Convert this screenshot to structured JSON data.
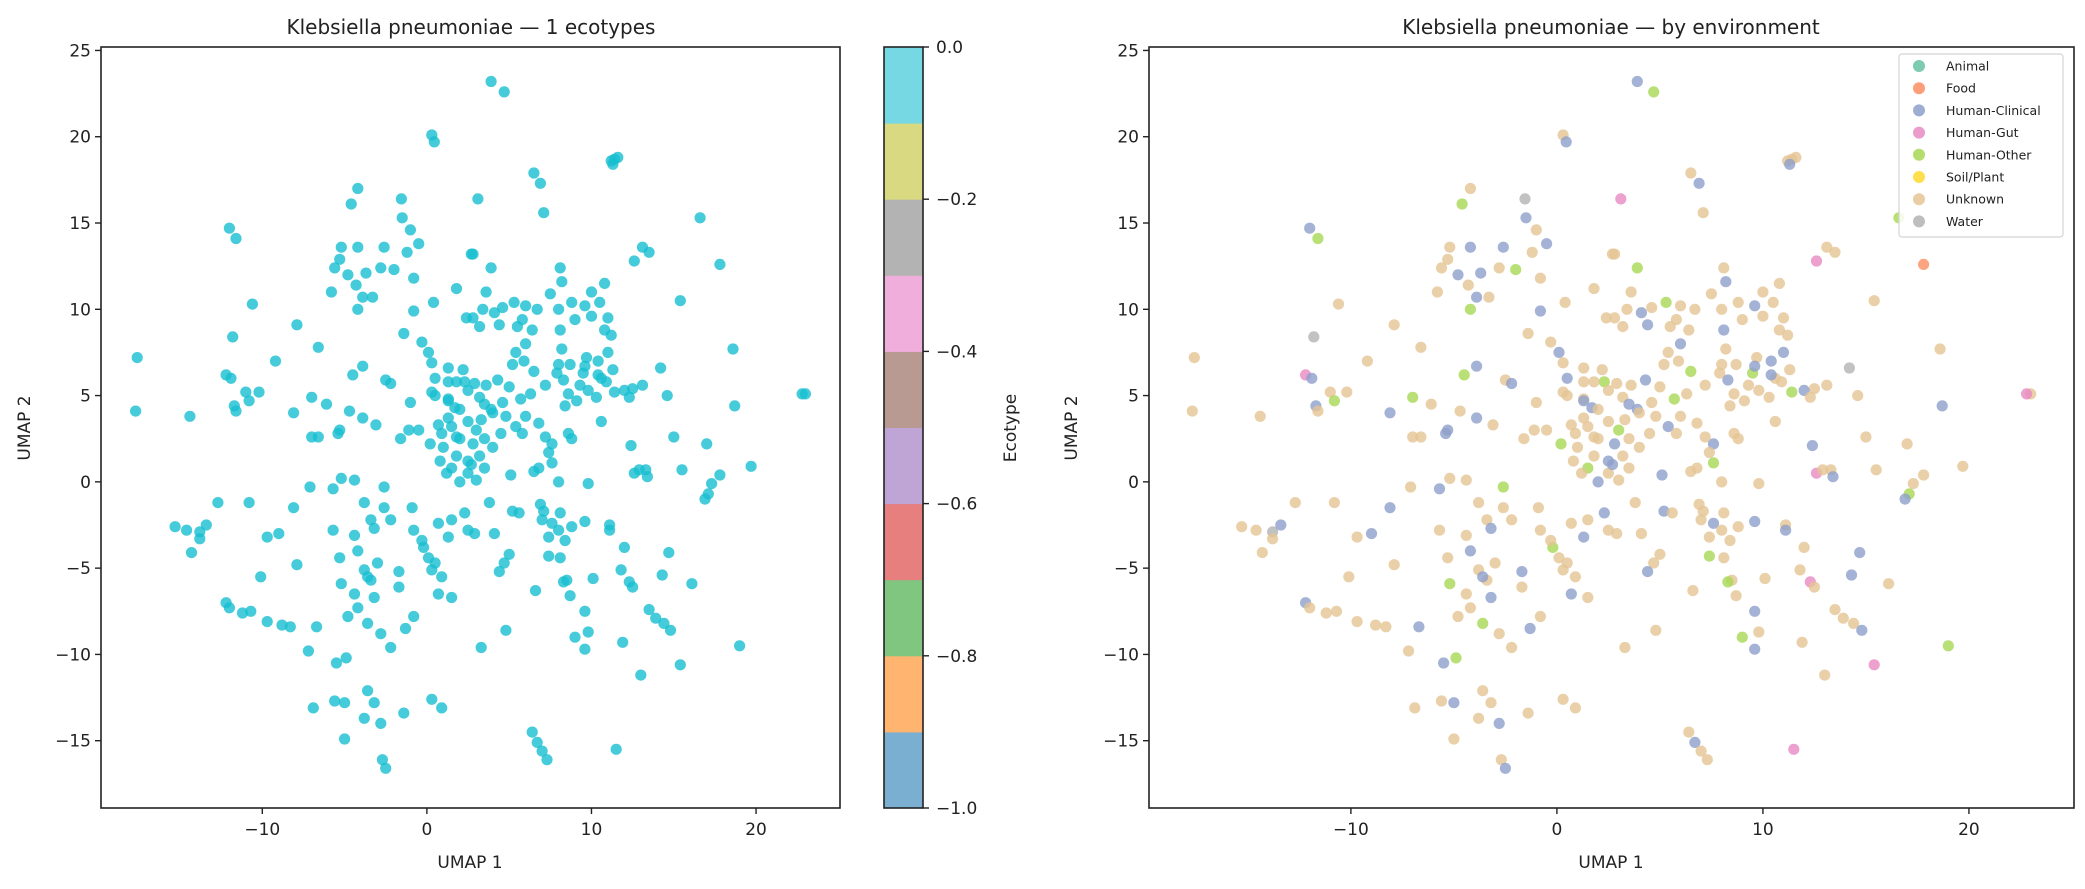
{
  "chart_data": [
    {
      "type": "scatter",
      "title": "Klebsiella pneumoniae — 1 ecotypes",
      "xlabel": "UMAP 1",
      "ylabel": "UMAP 2",
      "xlim": [
        -19.8,
        25.1
      ],
      "ylim": [
        -18.9,
        25.2
      ],
      "xticks": [
        -10,
        0,
        10,
        20
      ],
      "yticks": [
        -15,
        -10,
        -5,
        0,
        5,
        10,
        15,
        20,
        25
      ],
      "xtick_labels": [
        "−10",
        "0",
        "10",
        "20"
      ],
      "ytick_labels": [
        "−15",
        "−10",
        "−5",
        "0",
        "5",
        "10",
        "15",
        "20",
        "25"
      ],
      "point_color": "#17becf",
      "grid": false,
      "colorbar": {
        "label": "Ecotype",
        "range": [
          -1.0,
          0.0
        ],
        "ticks": [
          0.0,
          -0.2,
          -0.4,
          -0.6,
          -0.8,
          -1.0
        ],
        "tick_labels": [
          "0.0",
          "−0.2",
          "−0.4",
          "−0.6",
          "−0.8",
          "−1.0"
        ],
        "colors_bottom_to_top": [
          "#7aafd2",
          "#ffb56f",
          "#80c680",
          "#e77f7f",
          "#bea5d6",
          "#b99a92",
          "#efaedb",
          "#b3b3b3",
          "#d8d980",
          "#75d8e2"
        ]
      }
    },
    {
      "type": "scatter",
      "title": "Klebsiella pneumoniae — by environment",
      "xlabel": "UMAP 1",
      "ylabel": "UMAP 2",
      "xlim": [
        -19.8,
        25.1
      ],
      "ylim": [
        -18.9,
        25.2
      ],
      "xticks": [
        -10,
        0,
        10,
        20
      ],
      "yticks": [
        -15,
        -10,
        -5,
        0,
        5,
        10,
        15,
        20,
        25
      ],
      "xtick_labels": [
        "−10",
        "0",
        "10",
        "20"
      ],
      "ytick_labels": [
        "−15",
        "−10",
        "−5",
        "0",
        "5",
        "10",
        "15",
        "20",
        "25"
      ],
      "grid": false,
      "legend_position": "top-right",
      "categories": [
        "Animal",
        "Food",
        "Human-Clinical",
        "Human-Gut",
        "Human-Other",
        "Soil/Plant",
        "Unknown",
        "Water"
      ],
      "category_colors": [
        "#66c2a5",
        "#fc8d62",
        "#8da0cb",
        "#e78ac3",
        "#a6d854",
        "#ffd92f",
        "#e5c494",
        "#b3b3b3"
      ]
    }
  ],
  "points": [
    [
      0.3,
      20.1,
      6
    ],
    [
      0.45,
      19.7,
      2
    ],
    [
      -4.2,
      17.0,
      6
    ],
    [
      -4.6,
      16.1,
      4
    ],
    [
      -1.55,
      16.4,
      7
    ],
    [
      -1.5,
      15.3,
      2
    ],
    [
      -1.0,
      14.6,
      6
    ],
    [
      -0.5,
      13.8,
      2
    ],
    [
      -1.2,
      13.3,
      6
    ],
    [
      -2.6,
      13.6,
      2
    ],
    [
      -12.0,
      14.7,
      2
    ],
    [
      -11.6,
      14.1,
      4
    ],
    [
      -5.2,
      13.6,
      6
    ],
    [
      -4.2,
      13.6,
      2
    ],
    [
      -5.3,
      12.9,
      6
    ],
    [
      -5.6,
      12.4,
      6
    ],
    [
      -4.8,
      12.0,
      2
    ],
    [
      -4.3,
      11.4,
      6
    ],
    [
      -3.7,
      12.1,
      2
    ],
    [
      -2.8,
      12.4,
      6
    ],
    [
      -2.0,
      12.3,
      4
    ],
    [
      -0.8,
      11.8,
      6
    ],
    [
      1.8,
      11.2,
      6
    ],
    [
      2.7,
      13.2,
      6
    ],
    [
      -5.8,
      11.0,
      6
    ],
    [
      -3.9,
      10.7,
      2
    ],
    [
      -3.3,
      10.7,
      6
    ],
    [
      -4.2,
      10.0,
      4
    ],
    [
      -0.8,
      9.9,
      2
    ],
    [
      0.4,
      10.4,
      6
    ],
    [
      2.4,
      9.5,
      6
    ],
    [
      -10.6,
      10.3,
      6
    ],
    [
      -7.9,
      9.1,
      6
    ],
    [
      -11.8,
      8.4,
      7
    ],
    [
      -6.6,
      7.8,
      6
    ],
    [
      -17.6,
      7.2,
      6
    ],
    [
      -9.2,
      7.0,
      6
    ],
    [
      -12.2,
      6.2,
      3
    ],
    [
      -11.9,
      6.0,
      2
    ],
    [
      -3.9,
      6.7,
      2
    ],
    [
      -4.5,
      6.2,
      4
    ],
    [
      -2.5,
      5.9,
      6
    ],
    [
      -2.2,
      5.7,
      2
    ],
    [
      -1.4,
      8.6,
      6
    ],
    [
      -0.3,
      8.1,
      6
    ],
    [
      0.1,
      7.5,
      2
    ],
    [
      0.3,
      6.9,
      6
    ],
    [
      1.3,
      6.6,
      6
    ],
    [
      2.2,
      6.5,
      6
    ],
    [
      0.5,
      6.0,
      2
    ],
    [
      1.3,
      5.8,
      6
    ],
    [
      2.3,
      5.8,
      4
    ],
    [
      0.3,
      5.2,
      6
    ],
    [
      1.3,
      4.8,
      6
    ],
    [
      1.7,
      4.3,
      2
    ],
    [
      1.3,
      3.7,
      6
    ],
    [
      0.7,
      3.3,
      6
    ],
    [
      -17.7,
      4.1,
      6
    ],
    [
      -14.4,
      3.8,
      6
    ],
    [
      -11.0,
      5.2,
      6
    ],
    [
      -10.2,
      5.2,
      6
    ],
    [
      -10.8,
      4.7,
      4
    ],
    [
      -11.7,
      4.4,
      2
    ],
    [
      -11.6,
      4.1,
      6
    ],
    [
      -7.0,
      4.9,
      4
    ],
    [
      -6.1,
      4.5,
      6
    ],
    [
      -8.1,
      4.0,
      2
    ],
    [
      -4.7,
      4.1,
      6
    ],
    [
      -3.9,
      3.7,
      2
    ],
    [
      -3.1,
      3.3,
      6
    ],
    [
      -1.0,
      4.6,
      6
    ],
    [
      -5.3,
      3.0,
      2
    ],
    [
      -1.1,
      3.0,
      6
    ],
    [
      -0.5,
      3.0,
      6
    ],
    [
      3.9,
      23.2,
      2
    ],
    [
      4.7,
      22.6,
      4
    ],
    [
      11.4,
      18.7,
      6
    ],
    [
      11.2,
      18.6,
      6
    ],
    [
      11.6,
      18.8,
      6
    ],
    [
      11.3,
      18.4,
      2
    ],
    [
      6.5,
      17.9,
      6
    ],
    [
      6.9,
      17.3,
      2
    ],
    [
      3.1,
      16.4,
      3
    ],
    [
      7.1,
      15.6,
      6
    ],
    [
      16.6,
      15.3,
      4
    ],
    [
      13.1,
      13.6,
      6
    ],
    [
      13.5,
      13.3,
      6
    ],
    [
      12.6,
      12.8,
      3
    ],
    [
      17.8,
      12.6,
      1
    ],
    [
      2.8,
      13.2,
      6
    ],
    [
      3.9,
      12.4,
      4
    ],
    [
      8.1,
      12.4,
      6
    ],
    [
      8.2,
      11.6,
      2
    ],
    [
      7.5,
      10.9,
      6
    ],
    [
      10.8,
      11.5,
      6
    ],
    [
      10.0,
      11.0,
      6
    ],
    [
      3.6,
      11.0,
      6
    ],
    [
      15.4,
      10.5,
      6
    ],
    [
      18.6,
      7.7,
      6
    ],
    [
      23.0,
      5.1,
      6
    ],
    [
      22.8,
      5.1,
      3
    ],
    [
      18.7,
      4.4,
      2
    ],
    [
      14.6,
      5.0,
      6
    ],
    [
      14.2,
      6.6,
      7
    ],
    [
      12.5,
      5.4,
      6
    ],
    [
      13.1,
      5.6,
      6
    ],
    [
      12.0,
      5.3,
      2
    ],
    [
      12.3,
      4.9,
      6
    ],
    [
      10.6,
      3.5,
      6
    ],
    [
      8.4,
      4.4,
      6
    ],
    [
      8.0,
      10.0,
      6
    ],
    [
      8.8,
      10.4,
      6
    ],
    [
      9.6,
      10.2,
      2
    ],
    [
      10.5,
      10.4,
      6
    ],
    [
      11.0,
      9.5,
      6
    ],
    [
      11.2,
      8.5,
      6
    ],
    [
      11.0,
      7.5,
      2
    ],
    [
      11.3,
      6.5,
      6
    ],
    [
      10.6,
      6.0,
      6
    ],
    [
      9.5,
      6.3,
      4
    ],
    [
      8.7,
      6.8,
      6
    ],
    [
      8.2,
      7.7,
      6
    ],
    [
      8.1,
      8.8,
      2
    ],
    [
      9.0,
      9.4,
      6
    ],
    [
      10.0,
      9.6,
      6
    ],
    [
      10.8,
      8.8,
      6
    ],
    [
      9.7,
      7.2,
      6
    ],
    [
      10.4,
      7.0,
      2
    ],
    [
      2.8,
      9.5,
      6
    ],
    [
      3.4,
      10.0,
      6
    ],
    [
      4.1,
      9.8,
      2
    ],
    [
      4.6,
      10.1,
      6
    ],
    [
      5.3,
      10.4,
      4
    ],
    [
      6.0,
      10.2,
      6
    ],
    [
      6.7,
      10.0,
      6
    ],
    [
      3.2,
      9.0,
      6
    ],
    [
      4.4,
      9.1,
      2
    ],
    [
      5.8,
      9.4,
      6
    ],
    [
      5.5,
      9.0,
      6
    ],
    [
      6.4,
      8.8,
      6
    ],
    [
      6.0,
      8.0,
      2
    ],
    [
      5.4,
      7.5,
      6
    ],
    [
      5.9,
      7.0,
      6
    ],
    [
      6.5,
      6.4,
      4
    ],
    [
      5.2,
      6.8,
      6
    ],
    [
      7.2,
      5.6,
      6
    ],
    [
      7.9,
      6.3,
      6
    ],
    [
      8.3,
      5.9,
      2
    ],
    [
      8.6,
      5.1,
      6
    ],
    [
      9.3,
      5.6,
      6
    ],
    [
      9.8,
      5.3,
      6
    ],
    [
      10.4,
      6.2,
      2
    ],
    [
      10.9,
      5.8,
      6
    ],
    [
      11.4,
      5.2,
      4
    ],
    [
      10.3,
      4.9,
      6
    ],
    [
      9.1,
      4.7,
      6
    ],
    [
      8.0,
      6.8,
      6
    ],
    [
      9.6,
      6.7,
      2
    ],
    [
      2.9,
      5.7,
      6
    ],
    [
      3.6,
      5.6,
      6
    ],
    [
      4.3,
      5.9,
      2
    ],
    [
      5.0,
      5.5,
      6
    ],
    [
      3.2,
      4.9,
      6
    ],
    [
      4.6,
      4.6,
      6
    ],
    [
      5.7,
      4.8,
      4
    ],
    [
      6.3,
      5.1,
      6
    ],
    [
      3.9,
      4.2,
      2
    ],
    [
      4.8,
      3.8,
      6
    ],
    [
      6.0,
      3.8,
      6
    ],
    [
      6.8,
      3.4,
      6
    ],
    [
      3.3,
      3.6,
      6
    ],
    [
      5.4,
      3.2,
      2
    ],
    [
      0.5,
      5.0,
      6
    ],
    [
      1.3,
      4.7,
      2
    ],
    [
      2.0,
      4.2,
      6
    ],
    [
      2.5,
      3.5,
      6
    ],
    [
      3.0,
      3.0,
      4
    ],
    [
      1.5,
      3.2,
      6
    ],
    [
      2.0,
      2.5,
      6
    ],
    [
      2.8,
      2.2,
      2
    ],
    [
      3.5,
      2.5,
      6
    ],
    [
      1.0,
      2.0,
      6
    ],
    [
      1.8,
      1.5,
      6
    ],
    [
      2.5,
      1.2,
      2
    ],
    [
      3.2,
      1.5,
      6
    ],
    [
      4.0,
      2.0,
      6
    ],
    [
      4.5,
      2.8,
      6
    ],
    [
      1.5,
      0.8,
      4
    ],
    [
      2.5,
      0.5,
      6
    ],
    [
      3.5,
      0.8,
      6
    ],
    [
      2.0,
      0.0,
      2
    ],
    [
      3.0,
      0.1,
      6
    ],
    [
      0.8,
      1.2,
      6
    ],
    [
      4.0,
      4.0,
      6
    ],
    [
      3.5,
      4.5,
      2
    ],
    [
      2.5,
      5.3,
      6
    ],
    [
      1.8,
      5.8,
      6
    ],
    [
      -6.6,
      2.6,
      6
    ],
    [
      -7.0,
      2.6,
      6
    ],
    [
      -5.4,
      2.8,
      2
    ],
    [
      -1.6,
      2.5,
      6
    ],
    [
      0.2,
      2.2,
      4
    ],
    [
      0.9,
      2.8,
      6
    ],
    [
      1.8,
      2.6,
      6
    ],
    [
      2.7,
      1.0,
      2
    ],
    [
      1.2,
      0.5,
      6
    ],
    [
      -7.1,
      -0.3,
      6
    ],
    [
      -5.7,
      -0.4,
      2
    ],
    [
      -5.2,
      0.2,
      6
    ],
    [
      -4.4,
      0.1,
      6
    ],
    [
      -2.6,
      -0.3,
      4
    ],
    [
      -12.7,
      -1.2,
      6
    ],
    [
      -10.8,
      -1.2,
      6
    ],
    [
      -8.1,
      -1.5,
      2
    ],
    [
      -3.8,
      -1.2,
      6
    ],
    [
      -15.3,
      -2.6,
      6
    ],
    [
      -14.6,
      -2.8,
      6
    ],
    [
      -13.8,
      -2.9,
      7
    ],
    [
      -13.4,
      -2.5,
      2
    ],
    [
      -13.8,
      -3.3,
      6
    ],
    [
      -14.3,
      -4.1,
      6
    ],
    [
      -9.7,
      -3.2,
      6
    ],
    [
      -9.0,
      -3.0,
      2
    ],
    [
      -5.7,
      -2.8,
      6
    ],
    [
      -7.9,
      -4.8,
      6
    ],
    [
      -10.1,
      -5.5,
      6
    ],
    [
      -12.2,
      -7.0,
      2
    ],
    [
      -12.0,
      -7.3,
      6
    ],
    [
      -11.2,
      -7.6,
      6
    ],
    [
      -10.7,
      -7.5,
      6
    ],
    [
      -9.7,
      -8.1,
      6
    ],
    [
      -8.8,
      -8.3,
      6
    ],
    [
      -8.3,
      -8.4,
      6
    ],
    [
      -6.7,
      -8.4,
      2
    ],
    [
      -7.2,
      -9.8,
      6
    ],
    [
      -5.5,
      -10.5,
      2
    ],
    [
      -4.9,
      -10.2,
      4
    ],
    [
      -6.9,
      -13.1,
      6
    ],
    [
      -5.6,
      -12.7,
      6
    ],
    [
      -5.0,
      -12.8,
      2
    ],
    [
      -3.6,
      -12.1,
      6
    ],
    [
      -3.2,
      -12.8,
      6
    ],
    [
      -3.8,
      -13.7,
      6
    ],
    [
      -2.8,
      -14.0,
      2
    ],
    [
      -1.4,
      -13.4,
      6
    ],
    [
      0.3,
      -12.6,
      6
    ],
    [
      0.9,
      -13.1,
      6
    ],
    [
      -5.0,
      -14.9,
      6
    ],
    [
      -2.7,
      -16.1,
      6
    ],
    [
      -2.5,
      -16.6,
      2
    ],
    [
      -4.4,
      -3.1,
      6
    ],
    [
      -4.2,
      -4.0,
      2
    ],
    [
      -5.3,
      -4.4,
      6
    ],
    [
      -5.2,
      -5.9,
      4
    ],
    [
      -4.4,
      -6.5,
      6
    ],
    [
      -3.4,
      -5.7,
      6
    ],
    [
      -3.2,
      -6.7,
      2
    ],
    [
      -2.6,
      -1.5,
      6
    ],
    [
      -2.2,
      -2.2,
      6
    ],
    [
      -0.9,
      -1.5,
      6
    ],
    [
      -1.7,
      -5.2,
      2
    ],
    [
      -1.7,
      -6.1,
      6
    ],
    [
      -0.8,
      -2.8,
      6
    ],
    [
      -0.2,
      -3.8,
      4
    ],
    [
      0.7,
      -2.4,
      6
    ],
    [
      1.5,
      -2.2,
      6
    ],
    [
      2.3,
      -1.8,
      2
    ],
    [
      0.5,
      -4.7,
      6
    ],
    [
      0.9,
      -5.5,
      6
    ],
    [
      1.5,
      -6.7,
      6
    ],
    [
      0.7,
      -6.5,
      2
    ],
    [
      -4.8,
      -7.8,
      6
    ],
    [
      -4.2,
      -7.3,
      6
    ],
    [
      -3.6,
      -8.2,
      4
    ],
    [
      -2.8,
      -8.8,
      6
    ],
    [
      -2.2,
      -9.6,
      6
    ],
    [
      -1.3,
      -8.5,
      2
    ],
    [
      -0.8,
      -7.8,
      6
    ],
    [
      -3.4,
      -2.2,
      6
    ],
    [
      -3.2,
      -2.7,
      2
    ],
    [
      -3.8,
      -5.1,
      6
    ],
    [
      -3.0,
      -4.7,
      6
    ],
    [
      -3.6,
      -5.5,
      2
    ],
    [
      -0.3,
      -3.4,
      6
    ],
    [
      0.1,
      -4.4,
      6
    ],
    [
      1.3,
      -3.2,
      2
    ],
    [
      2.5,
      -2.8,
      6
    ],
    [
      0.3,
      -5.1,
      6
    ],
    [
      5.8,
      2.8,
      6
    ],
    [
      7.2,
      2.6,
      6
    ],
    [
      7.6,
      2.2,
      2
    ],
    [
      8.6,
      2.8,
      6
    ],
    [
      8.8,
      2.5,
      6
    ],
    [
      7.4,
      1.7,
      6
    ],
    [
      7.6,
      1.1,
      4
    ],
    [
      6.8,
      0.8,
      6
    ],
    [
      6.5,
      0.6,
      6
    ],
    [
      5.1,
      0.4,
      2
    ],
    [
      8.0,
      0.0,
      6
    ],
    [
      9.8,
      -0.1,
      6
    ],
    [
      12.4,
      2.1,
      2
    ],
    [
      15.0,
      2.6,
      6
    ],
    [
      17.0,
      2.2,
      6
    ],
    [
      15.5,
      0.7,
      6
    ],
    [
      12.6,
      0.5,
      3
    ],
    [
      12.9,
      0.7,
      6
    ],
    [
      13.3,
      0.7,
      6
    ],
    [
      13.4,
      0.3,
      2
    ],
    [
      17.8,
      0.4,
      6
    ],
    [
      17.3,
      -0.1,
      6
    ],
    [
      17.1,
      -0.7,
      4
    ],
    [
      16.9,
      -1.0,
      2
    ],
    [
      19.7,
      0.9,
      6
    ],
    [
      3.8,
      -1.2,
      6
    ],
    [
      5.2,
      -1.7,
      2
    ],
    [
      5.6,
      -1.8,
      6
    ],
    [
      6.9,
      -1.3,
      6
    ],
    [
      7.1,
      -1.7,
      6
    ],
    [
      7.0,
      -2.2,
      6
    ],
    [
      7.6,
      -2.4,
      2
    ],
    [
      8.0,
      -2.8,
      6
    ],
    [
      7.4,
      -3.2,
      6
    ],
    [
      8.4,
      -3.4,
      6
    ],
    [
      7.4,
      -4.3,
      4
    ],
    [
      8.1,
      -4.4,
      6
    ],
    [
      8.8,
      -2.6,
      6
    ],
    [
      9.6,
      -2.3,
      2
    ],
    [
      8.1,
      -1.8,
      6
    ],
    [
      2.9,
      -3.0,
      6
    ],
    [
      4.1,
      -3.0,
      6
    ],
    [
      11.1,
      -2.5,
      6
    ],
    [
      11.1,
      -2.8,
      2
    ],
    [
      12.0,
      -3.8,
      6
    ],
    [
      14.7,
      -4.1,
      2
    ],
    [
      5.0,
      -4.2,
      6
    ],
    [
      4.7,
      -4.7,
      6
    ],
    [
      4.4,
      -5.2,
      2
    ],
    [
      8.5,
      -5.7,
      6
    ],
    [
      8.3,
      -5.8,
      4
    ],
    [
      10.1,
      -5.6,
      6
    ],
    [
      11.8,
      -5.1,
      6
    ],
    [
      12.3,
      -5.8,
      3
    ],
    [
      12.5,
      -6.1,
      6
    ],
    [
      14.3,
      -5.4,
      2
    ],
    [
      16.1,
      -5.9,
      6
    ],
    [
      6.6,
      -6.3,
      6
    ],
    [
      8.7,
      -6.6,
      6
    ],
    [
      9.6,
      -7.5,
      2
    ],
    [
      13.5,
      -7.4,
      6
    ],
    [
      13.9,
      -7.9,
      6
    ],
    [
      14.4,
      -8.2,
      6
    ],
    [
      14.8,
      -8.6,
      2
    ],
    [
      4.8,
      -8.6,
      6
    ],
    [
      3.3,
      -9.6,
      6
    ],
    [
      9.0,
      -9.0,
      4
    ],
    [
      9.8,
      -8.7,
      6
    ],
    [
      9.6,
      -9.7,
      2
    ],
    [
      11.9,
      -9.3,
      6
    ],
    [
      19.0,
      -9.5,
      4
    ],
    [
      15.4,
      -10.6,
      3
    ],
    [
      13.0,
      -11.2,
      6
    ],
    [
      6.4,
      -14.5,
      6
    ],
    [
      6.7,
      -15.1,
      2
    ],
    [
      7.0,
      -15.6,
      6
    ],
    [
      7.3,
      -16.1,
      6
    ],
    [
      11.5,
      -15.5,
      3
    ]
  ]
}
